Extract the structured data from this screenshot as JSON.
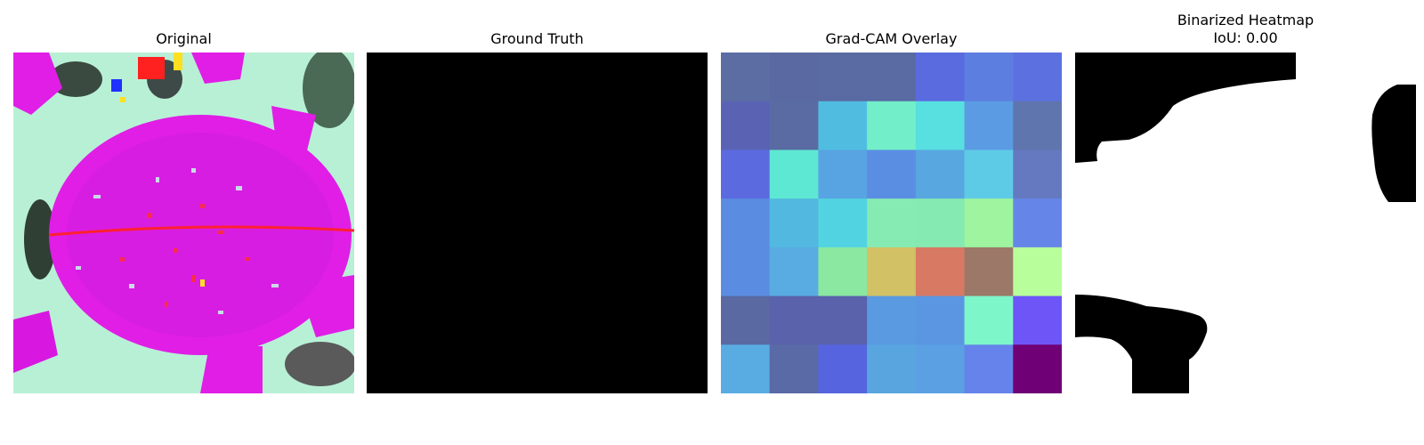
{
  "panels": {
    "original": {
      "title": "Original"
    },
    "ground_truth": {
      "title": "Ground Truth"
    },
    "gradcam": {
      "title": "Grad-CAM Overlay",
      "grid": [
        [
          "#5c6da3",
          "#5a69a2",
          "#5a6aa2",
          "#5a6aa2",
          "#5a6adf",
          "#5c7ee0",
          "#5c70e0"
        ],
        [
          "#5a63b3",
          "#5a6aa2",
          "#50bde0",
          "#72eec8",
          "#58dfe0",
          "#5b9be3",
          "#5f75ad"
        ],
        [
          "#5c6ae0",
          "#5de8d3",
          "#58a4e2",
          "#5a8ee3",
          "#58a7e0",
          "#5ecbe6",
          "#6479c0"
        ],
        [
          "#5a8de2",
          "#52b8df",
          "#52d3e2",
          "#85ebb3",
          "#84eab1",
          "#9ef49f",
          "#6685e8"
        ],
        [
          "#5a8de2",
          "#58ace2",
          "#8ae8a1",
          "#d3c166",
          "#d87a63",
          "#9b7868",
          "#b8fe9a"
        ],
        [
          "#5a69a2",
          "#5a62ab",
          "#5962ab",
          "#5a9ae0",
          "#5b96e2",
          "#7df6c9",
          "#6d55f7"
        ],
        [
          "#58ace2",
          "#5a6aa7",
          "#5665df",
          "#58a5e0",
          "#5aa0e3",
          "#6583ea",
          "#700075"
        ]
      ]
    },
    "binarized": {
      "title": "Binarized Heatmap\nIoU: 0.00"
    }
  },
  "colors": {
    "leaf_magenta": "#e01ee6",
    "background_mint": "#b8f0d6",
    "mask_black": "#000000",
    "mask_white": "#ffffff"
  }
}
